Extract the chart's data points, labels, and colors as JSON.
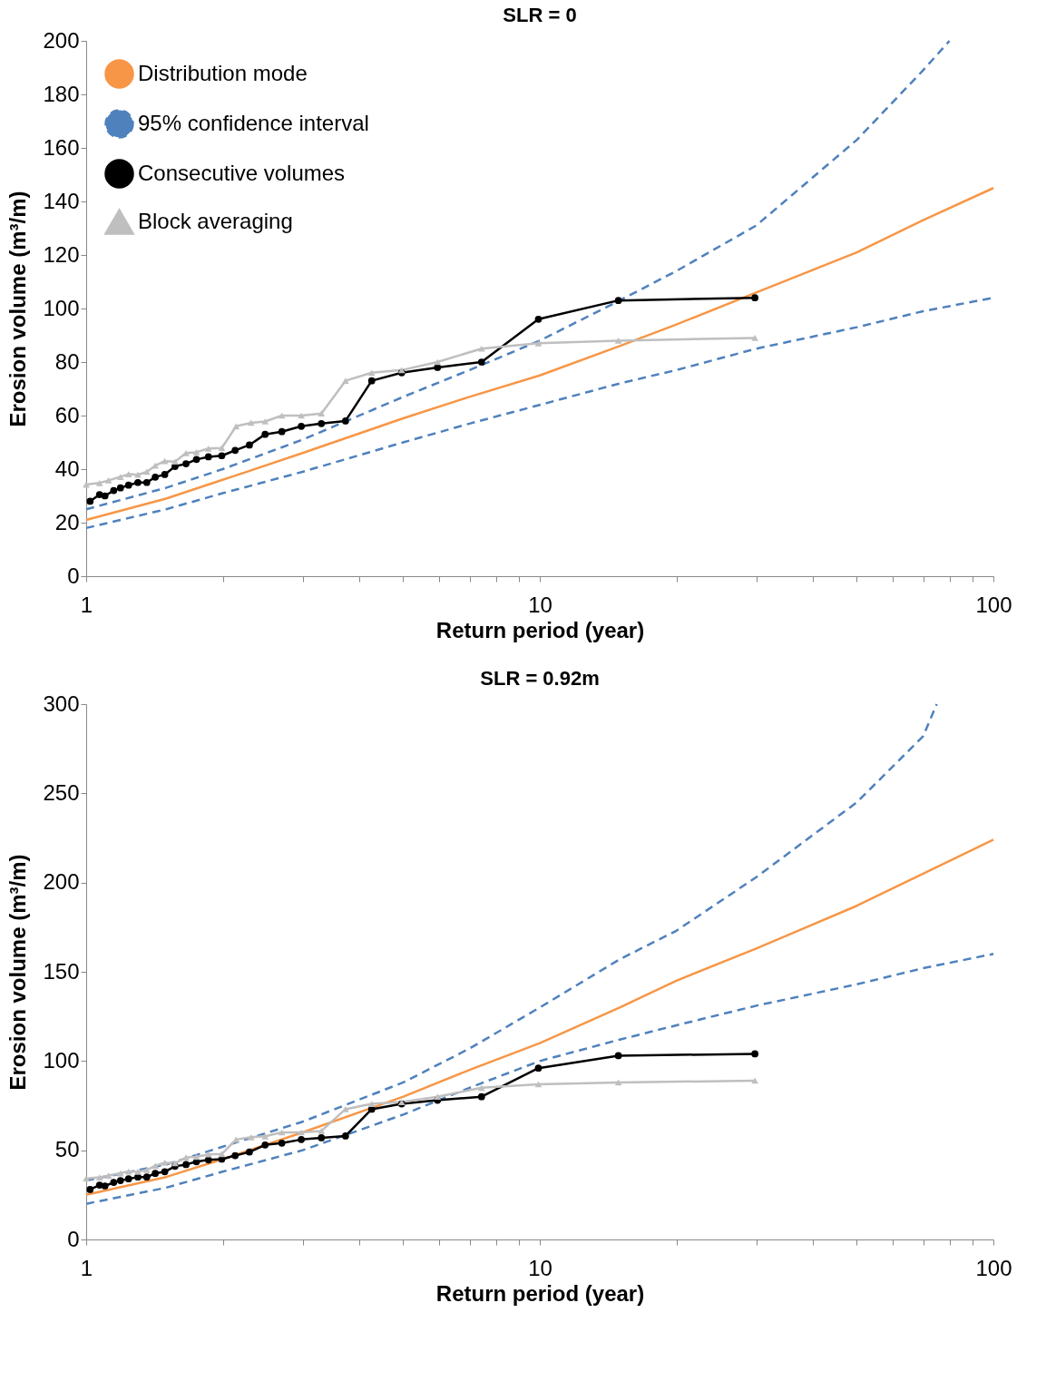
{
  "chart_data": [
    {
      "type": "line",
      "title": "SLR = 0",
      "xlabel": "Return period (year)",
      "ylabel": "Erosion volume (m³/m)",
      "log": "x",
      "legend": "top left",
      "grid": false,
      "xlim": [
        1,
        100
      ],
      "xticks": [
        1,
        {
          "value": 2,
          "label": null
        },
        {
          "value": 3,
          "label": null
        },
        {
          "value": 4,
          "label": null
        },
        {
          "value": 5,
          "label": null
        },
        {
          "value": 6,
          "label": null
        },
        {
          "value": 7,
          "label": null
        },
        {
          "value": 8,
          "label": null
        },
        {
          "value": 9,
          "label": null
        },
        10,
        {
          "value": 20,
          "label": null
        },
        {
          "value": 30,
          "label": null
        },
        {
          "value": 40,
          "label": null
        },
        {
          "value": 50,
          "label": null
        },
        {
          "value": 60,
          "label": null
        },
        {
          "value": 70,
          "label": null
        },
        {
          "value": 80,
          "label": null
        },
        {
          "value": 90,
          "label": null
        },
        100
      ],
      "ylim": [
        0,
        200
      ],
      "yticks": [
        0,
        20,
        40,
        60,
        80,
        100,
        120,
        140,
        160,
        180,
        200
      ],
      "series": [
        {
          "name": "Distribution mode",
          "color": "#f79646",
          "marker": "none",
          "line_style": "solid",
          "x": [
            1,
            1.5,
            2,
            3,
            5,
            7,
            10,
            15,
            20,
            30,
            50,
            70,
            100
          ],
          "values": [
            21,
            29,
            36,
            46,
            59,
            67,
            75,
            86,
            94,
            106,
            121,
            133,
            145
          ]
        },
        {
          "name": "95% confidence interval",
          "color": "#4f81bd",
          "marker": "none",
          "line_style": "dashed",
          "x": [
            1,
            1.5,
            2,
            3,
            5,
            7,
            10,
            15,
            20,
            30,
            50,
            70,
            80
          ],
          "values": [
            25,
            33,
            40,
            51,
            67,
            77,
            88,
            103,
            114,
            131,
            163,
            189,
            200
          ]
        },
        {
          "color": "#4f81bd",
          "marker": "none",
          "line_style": "dashed",
          "x": [
            1,
            1.5,
            2,
            3,
            5,
            7,
            10,
            15,
            20,
            30,
            50,
            70,
            100
          ],
          "values": [
            18,
            25,
            31,
            39,
            50,
            57,
            64,
            72,
            77,
            85,
            93,
            99,
            104
          ]
        },
        {
          "name": "Consecutive volumes",
          "color": "#000000",
          "marker": "circle",
          "line_style": "solid",
          "x": [
            1.02,
            1.07,
            1.1,
            1.15,
            1.19,
            1.24,
            1.3,
            1.36,
            1.42,
            1.49,
            1.57,
            1.66,
            1.75,
            1.86,
            1.99,
            2.13,
            2.29,
            2.48,
            2.7,
            2.98,
            3.3,
            3.73,
            4.26,
            4.96,
            5.95,
            7.44,
            9.93,
            14.9,
            29.8
          ],
          "values": [
            28,
            30.5,
            30,
            32,
            33,
            34,
            35,
            35,
            37,
            38,
            41,
            42,
            43.6,
            44.6,
            45,
            47,
            49,
            53,
            54,
            56,
            57,
            58,
            73,
            76,
            78,
            80,
            96,
            103,
            104
          ]
        },
        {
          "name": "Block averaging",
          "color": "#bfbfbf",
          "marker": "triangle",
          "line_style": "solid",
          "x": [
            1.0,
            1.07,
            1.12,
            1.19,
            1.24,
            1.3,
            1.36,
            1.42,
            1.49,
            1.57,
            1.66,
            1.75,
            1.86,
            1.99,
            2.14,
            2.31,
            2.48,
            2.7,
            2.98,
            3.3,
            3.73,
            4.26,
            4.96,
            5.95,
            7.44,
            9.93,
            14.9,
            29.8
          ],
          "values": [
            34.2,
            34.8,
            35.8,
            37.1,
            38.1,
            37.9,
            39,
            41.3,
            43,
            42.8,
            46,
            46.3,
            47.7,
            47.9,
            56,
            57.3,
            57.8,
            60,
            60,
            60.8,
            73,
            76,
            77,
            80,
            85,
            87,
            88,
            89
          ]
        }
      ]
    },
    {
      "type": "line",
      "title": "SLR = 0.92m",
      "xlabel": "Return period (year)",
      "ylabel": "Erosion volume (m³/m)",
      "log": "x",
      "legend": "top left",
      "grid": false,
      "xlim": [
        1,
        100
      ],
      "xticks": [
        1,
        {
          "value": 2,
          "label": null
        },
        {
          "value": 3,
          "label": null
        },
        {
          "value": 4,
          "label": null
        },
        {
          "value": 5,
          "label": null
        },
        {
          "value": 6,
          "label": null
        },
        {
          "value": 7,
          "label": null
        },
        {
          "value": 8,
          "label": null
        },
        {
          "value": 9,
          "label": null
        },
        10,
        {
          "value": 20,
          "label": null
        },
        {
          "value": 30,
          "label": null
        },
        {
          "value": 40,
          "label": null
        },
        {
          "value": 50,
          "label": null
        },
        {
          "value": 60,
          "label": null
        },
        {
          "value": 70,
          "label": null
        },
        {
          "value": 80,
          "label": null
        },
        {
          "value": 90,
          "label": null
        },
        100
      ],
      "ylim": [
        0,
        300
      ],
      "yticks": [
        0,
        50,
        100,
        150,
        200,
        250,
        300
      ],
      "series": [
        {
          "name": "Distribution mode",
          "color": "#f79646",
          "marker": "none",
          "line_style": "solid",
          "x": [
            1,
            1.5,
            2,
            3,
            5,
            7,
            10,
            15,
            20,
            30,
            50,
            70,
            100
          ],
          "values": [
            25,
            35,
            45,
            60,
            80,
            95,
            110,
            130,
            145,
            163,
            187,
            205,
            224
          ]
        },
        {
          "name": "95% confidence interval",
          "color": "#4f81bd",
          "marker": "none",
          "line_style": "dashed",
          "x": [
            1,
            1.5,
            2,
            3,
            5,
            7,
            10,
            15,
            20,
            30,
            50,
            70,
            75
          ],
          "values": [
            33,
            42,
            52,
            66,
            88,
            107,
            130,
            157,
            173,
            203,
            245,
            282,
            300
          ]
        },
        {
          "color": "#4f81bd",
          "marker": "none",
          "line_style": "dashed",
          "x": [
            1,
            1.5,
            2,
            3,
            5,
            7,
            10,
            15,
            20,
            30,
            50,
            70,
            100
          ],
          "values": [
            20,
            29,
            38,
            50,
            70,
            85,
            100,
            112,
            120,
            131,
            143,
            152,
            160
          ]
        },
        {
          "name": "Consecutive volumes",
          "color": "#000000",
          "marker": "circle",
          "line_style": "solid",
          "x": [
            1.02,
            1.07,
            1.1,
            1.15,
            1.19,
            1.24,
            1.3,
            1.36,
            1.42,
            1.49,
            1.57,
            1.66,
            1.75,
            1.86,
            1.99,
            2.13,
            2.29,
            2.48,
            2.7,
            2.98,
            3.3,
            3.73,
            4.26,
            4.96,
            5.95,
            7.44,
            9.93,
            14.9,
            29.8
          ],
          "values": [
            28,
            30.5,
            30,
            32,
            33,
            34,
            35,
            35,
            37,
            38,
            41,
            42,
            43.6,
            44.6,
            45,
            47,
            49,
            53,
            54,
            56,
            57,
            58,
            73,
            76,
            78,
            80,
            96,
            103,
            104
          ]
        },
        {
          "name": "Block averaging",
          "color": "#bfbfbf",
          "marker": "triangle",
          "line_style": "solid",
          "x": [
            1.0,
            1.07,
            1.12,
            1.19,
            1.24,
            1.3,
            1.36,
            1.42,
            1.49,
            1.57,
            1.66,
            1.75,
            1.86,
            1.99,
            2.14,
            2.31,
            2.48,
            2.7,
            2.98,
            3.3,
            3.73,
            4.26,
            4.96,
            5.95,
            7.44,
            9.93,
            14.9,
            29.8
          ],
          "values": [
            34.2,
            34.8,
            35.8,
            37.1,
            38.1,
            37.9,
            39,
            41.3,
            43,
            42.8,
            46,
            46.3,
            47.7,
            47.9,
            56,
            57.3,
            57.8,
            60,
            60,
            60.8,
            73,
            76,
            77,
            80,
            85,
            87,
            88,
            89
          ]
        }
      ]
    }
  ]
}
